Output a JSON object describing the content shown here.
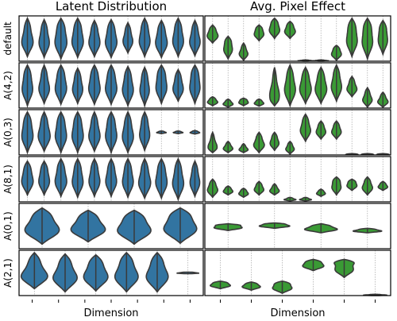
{
  "figure": {
    "left_title": "Latent Distribution",
    "right_title": "Avg. Pixel Effect",
    "left_xlabel": "Dimension",
    "right_xlabel": "Dimension",
    "latent_color": "#3274a1",
    "effect_color": "#3a9a35",
    "grid": "dotted vertical gray"
  },
  "chart_data": {
    "type": "violin",
    "layout": "grid 6 rows x 2 columns, violin plot per latent dimension",
    "row_labels": [
      "default",
      "A(4,2)",
      "A(0,3)",
      "A(8,1)",
      "A(0,1)",
      "A(2,1)"
    ],
    "rows": [
      {
        "label": "default",
        "latent": [
          {
            "c": 0.5,
            "w": 0.75,
            "top": 0.05,
            "bot": 0.9
          },
          {
            "c": 0.5,
            "w": 0.7,
            "top": 0.08,
            "bot": 0.92
          },
          {
            "c": 0.45,
            "w": 0.85,
            "top": 0.05,
            "bot": 0.95
          },
          {
            "c": 0.45,
            "w": 0.8,
            "top": 0.05,
            "bot": 0.92
          },
          {
            "c": 0.5,
            "w": 0.75,
            "top": 0.1,
            "bot": 0.9
          },
          {
            "c": 0.48,
            "w": 0.8,
            "top": 0.08,
            "bot": 0.92
          },
          {
            "c": 0.5,
            "w": 0.65,
            "top": 0.15,
            "bot": 0.82
          },
          {
            "c": 0.45,
            "w": 0.75,
            "top": 0.05,
            "bot": 0.9
          },
          {
            "c": 0.5,
            "w": 0.8,
            "top": 0.1,
            "bot": 0.92
          },
          {
            "c": 0.45,
            "w": 0.75,
            "top": 0.05,
            "bot": 0.9
          },
          {
            "c": 0.5,
            "w": 0.7,
            "top": 0.1,
            "bot": 0.88
          }
        ],
        "effect": [
          {
            "c": 0.4,
            "w": 0.8,
            "top": 0.2,
            "bot": 0.6
          },
          {
            "c": 0.65,
            "w": 0.7,
            "top": 0.45,
            "bot": 0.95
          },
          {
            "c": 0.82,
            "w": 0.6,
            "top": 0.6,
            "bot": 0.98
          },
          {
            "c": 0.35,
            "w": 0.75,
            "top": 0.2,
            "bot": 0.55
          },
          {
            "c": 0.25,
            "w": 0.8,
            "top": 0.05,
            "bot": 0.5
          },
          {
            "c": 0.3,
            "w": 0.8,
            "top": 0.12,
            "bot": 0.5
          },
          {
            "c": 0.99,
            "w": 0.9,
            "top": 0.97,
            "bot": 1.0
          },
          {
            "c": 0.99,
            "w": 0.9,
            "top": 0.97,
            "bot": 1.0
          },
          {
            "c": 0.8,
            "w": 0.75,
            "top": 0.65,
            "bot": 0.98
          },
          {
            "c": 0.4,
            "w": 0.85,
            "top": 0.05,
            "bot": 0.9
          },
          {
            "c": 0.4,
            "w": 0.85,
            "top": 0.05,
            "bot": 0.95
          },
          {
            "c": 0.4,
            "w": 0.75,
            "top": 0.1,
            "bot": 0.85
          }
        ]
      },
      {
        "label": "A(4,2)",
        "latent": [
          {
            "c": 0.45,
            "w": 0.75,
            "top": 0.05,
            "bot": 0.95
          },
          {
            "c": 0.5,
            "w": 0.7,
            "top": 0.05,
            "bot": 0.9
          },
          {
            "c": 0.45,
            "w": 0.8,
            "top": 0.05,
            "bot": 0.92
          },
          {
            "c": 0.5,
            "w": 0.7,
            "top": 0.12,
            "bot": 0.9
          },
          {
            "c": 0.45,
            "w": 0.8,
            "top": 0.05,
            "bot": 0.92
          },
          {
            "c": 0.45,
            "w": 0.8,
            "top": 0.05,
            "bot": 0.92
          },
          {
            "c": 0.5,
            "w": 0.75,
            "top": 0.08,
            "bot": 0.95
          },
          {
            "c": 0.5,
            "w": 0.65,
            "top": 0.1,
            "bot": 0.95
          },
          {
            "c": 0.4,
            "w": 0.8,
            "top": 0.05,
            "bot": 0.9
          },
          {
            "c": 0.5,
            "w": 0.7,
            "top": 0.15,
            "bot": 0.85
          },
          {
            "c": 0.4,
            "w": 0.75,
            "top": 0.05,
            "bot": 0.9
          }
        ],
        "effect": [
          {
            "c": 0.85,
            "w": 0.75,
            "top": 0.75,
            "bot": 0.95
          },
          {
            "c": 0.9,
            "w": 0.7,
            "top": 0.8,
            "bot": 0.98
          },
          {
            "c": 0.85,
            "w": 0.75,
            "top": 0.78,
            "bot": 0.95
          },
          {
            "c": 0.88,
            "w": 0.7,
            "top": 0.8,
            "bot": 0.96
          },
          {
            "c": 0.8,
            "w": 0.65,
            "top": 0.1,
            "bot": 0.95
          },
          {
            "c": 0.5,
            "w": 0.8,
            "top": 0.05,
            "bot": 0.95
          },
          {
            "c": 0.5,
            "w": 0.85,
            "top": 0.1,
            "bot": 0.9
          },
          {
            "c": 0.5,
            "w": 0.85,
            "top": 0.1,
            "bot": 0.9
          },
          {
            "c": 0.45,
            "w": 0.75,
            "top": 0.05,
            "bot": 0.85
          },
          {
            "c": 0.55,
            "w": 0.7,
            "top": 0.3,
            "bot": 0.75
          },
          {
            "c": 0.8,
            "w": 0.65,
            "top": 0.55,
            "bot": 0.98
          },
          {
            "c": 0.85,
            "w": 0.7,
            "top": 0.65,
            "bot": 0.98
          }
        ]
      },
      {
        "label": "A(0,3)",
        "latent": [
          {
            "c": 0.45,
            "w": 0.8,
            "top": 0.05,
            "bot": 0.95
          },
          {
            "c": 0.5,
            "w": 0.8,
            "top": 0.05,
            "bot": 0.92
          },
          {
            "c": 0.45,
            "w": 0.8,
            "top": 0.05,
            "bot": 0.95
          },
          {
            "c": 0.45,
            "w": 0.8,
            "top": 0.05,
            "bot": 0.95
          },
          {
            "c": 0.5,
            "w": 0.75,
            "top": 0.05,
            "bot": 0.92
          },
          {
            "c": 0.45,
            "w": 0.8,
            "top": 0.05,
            "bot": 0.95
          },
          {
            "c": 0.5,
            "w": 0.75,
            "top": 0.05,
            "bot": 0.95
          },
          {
            "c": 0.45,
            "w": 0.7,
            "top": 0.05,
            "bot": 0.9
          },
          {
            "c": 0.5,
            "w": 0.65,
            "top": 0.47,
            "bot": 0.53
          },
          {
            "c": 0.5,
            "w": 0.65,
            "top": 0.47,
            "bot": 0.53
          },
          {
            "c": 0.5,
            "w": 0.65,
            "top": 0.46,
            "bot": 0.54
          }
        ],
        "effect": [
          {
            "c": 0.85,
            "w": 0.6,
            "top": 0.5,
            "bot": 0.95
          },
          {
            "c": 0.85,
            "w": 0.65,
            "top": 0.7,
            "bot": 0.95
          },
          {
            "c": 0.88,
            "w": 0.6,
            "top": 0.75,
            "bot": 0.95
          },
          {
            "c": 0.75,
            "w": 0.75,
            "top": 0.5,
            "bot": 0.95
          },
          {
            "c": 0.7,
            "w": 0.65,
            "top": 0.5,
            "bot": 0.9
          },
          {
            "c": 0.85,
            "w": 0.6,
            "top": 0.7,
            "bot": 0.98
          },
          {
            "c": 0.4,
            "w": 0.75,
            "top": 0.1,
            "bot": 0.7
          },
          {
            "c": 0.45,
            "w": 0.7,
            "top": 0.25,
            "bot": 0.65
          },
          {
            "c": 0.45,
            "w": 0.7,
            "top": 0.25,
            "bot": 0.65
          },
          {
            "c": 0.98,
            "w": 0.8,
            "top": 0.97,
            "bot": 0.99
          },
          {
            "c": 0.98,
            "w": 0.8,
            "top": 0.97,
            "bot": 0.99
          },
          {
            "c": 0.98,
            "w": 0.8,
            "top": 0.97,
            "bot": 0.99
          }
        ]
      },
      {
        "label": "A(8,1)",
        "latent": [
          {
            "c": 0.45,
            "w": 0.8,
            "top": 0.1,
            "bot": 0.85
          },
          {
            "c": 0.45,
            "w": 0.75,
            "top": 0.1,
            "bot": 0.85
          },
          {
            "c": 0.45,
            "w": 0.8,
            "top": 0.05,
            "bot": 0.88
          },
          {
            "c": 0.45,
            "w": 0.75,
            "top": 0.05,
            "bot": 0.9
          },
          {
            "c": 0.45,
            "w": 0.75,
            "top": 0.05,
            "bot": 0.88
          },
          {
            "c": 0.45,
            "w": 0.75,
            "top": 0.05,
            "bot": 0.88
          },
          {
            "c": 0.45,
            "w": 0.75,
            "top": 0.05,
            "bot": 0.9
          },
          {
            "c": 0.5,
            "w": 0.8,
            "top": 0.05,
            "bot": 0.92
          },
          {
            "c": 0.45,
            "w": 0.8,
            "top": 0.05,
            "bot": 0.92
          },
          {
            "c": 0.5,
            "w": 0.75,
            "top": 0.05,
            "bot": 0.95
          },
          {
            "c": 0.5,
            "w": 0.65,
            "top": 0.1,
            "bot": 0.88
          }
        ],
        "effect": [
          {
            "c": 0.7,
            "w": 0.75,
            "top": 0.5,
            "bot": 0.9
          },
          {
            "c": 0.75,
            "w": 0.7,
            "top": 0.65,
            "bot": 0.85
          },
          {
            "c": 0.8,
            "w": 0.7,
            "top": 0.7,
            "bot": 0.9
          },
          {
            "c": 0.7,
            "w": 0.7,
            "top": 0.55,
            "bot": 0.85
          },
          {
            "c": 0.75,
            "w": 0.65,
            "top": 0.6,
            "bot": 0.85
          },
          {
            "c": 0.95,
            "w": 0.8,
            "top": 0.9,
            "bot": 0.98
          },
          {
            "c": 0.95,
            "w": 0.8,
            "top": 0.9,
            "bot": 0.98
          },
          {
            "c": 0.8,
            "w": 0.65,
            "top": 0.72,
            "bot": 0.88
          },
          {
            "c": 0.6,
            "w": 0.75,
            "top": 0.45,
            "bot": 0.85
          },
          {
            "c": 0.6,
            "w": 0.8,
            "top": 0.5,
            "bot": 0.75
          },
          {
            "c": 0.65,
            "w": 0.75,
            "top": 0.45,
            "bot": 0.85
          },
          {
            "c": 0.65,
            "w": 0.7,
            "top": 0.55,
            "bot": 0.75
          }
        ]
      },
      {
        "label": "A(0,1)",
        "latent": [
          {
            "c": 0.5,
            "w": 0.85,
            "top": 0.1,
            "bot": 0.9
          },
          {
            "c": 0.5,
            "w": 0.85,
            "top": 0.15,
            "bot": 0.85
          },
          {
            "c": 0.5,
            "w": 0.85,
            "top": 0.15,
            "bot": 0.9
          },
          {
            "c": 0.45,
            "w": 0.85,
            "top": 0.1,
            "bot": 0.88
          }
        ],
        "effect": [
          {
            "c": 0.5,
            "w": 0.8,
            "top": 0.45,
            "bot": 0.6
          },
          {
            "c": 0.48,
            "w": 0.8,
            "top": 0.43,
            "bot": 0.55
          },
          {
            "c": 0.55,
            "w": 0.8,
            "top": 0.45,
            "bot": 0.65
          },
          {
            "c": 0.6,
            "w": 0.7,
            "top": 0.55,
            "bot": 0.65
          }
        ]
      },
      {
        "label": "A(2,1)",
        "latent": [
          {
            "c": 0.55,
            "w": 0.9,
            "top": 0.05,
            "bot": 0.85
          },
          {
            "c": 0.55,
            "w": 0.85,
            "top": 0.08,
            "bot": 0.92
          },
          {
            "c": 0.5,
            "w": 0.9,
            "top": 0.1,
            "bot": 0.9
          },
          {
            "c": 0.5,
            "w": 0.85,
            "top": 0.05,
            "bot": 0.92
          },
          {
            "c": 0.5,
            "w": 0.8,
            "top": 0.05,
            "bot": 0.92
          },
          {
            "c": 0.5,
            "w": 0.8,
            "top": 0.48,
            "bot": 0.52
          }
        ],
        "effect": [
          {
            "c": 0.75,
            "w": 0.8,
            "top": 0.68,
            "bot": 0.85
          },
          {
            "c": 0.78,
            "w": 0.7,
            "top": 0.7,
            "bot": 0.88
          },
          {
            "c": 0.78,
            "w": 0.8,
            "top": 0.68,
            "bot": 0.95
          },
          {
            "c": 0.3,
            "w": 0.85,
            "top": 0.2,
            "bot": 0.45
          },
          {
            "c": 0.3,
            "w": 0.85,
            "top": 0.2,
            "bot": 0.6
          },
          {
            "c": 0.99,
            "w": 0.8,
            "top": 0.97,
            "bot": 1.0
          }
        ]
      }
    ]
  }
}
